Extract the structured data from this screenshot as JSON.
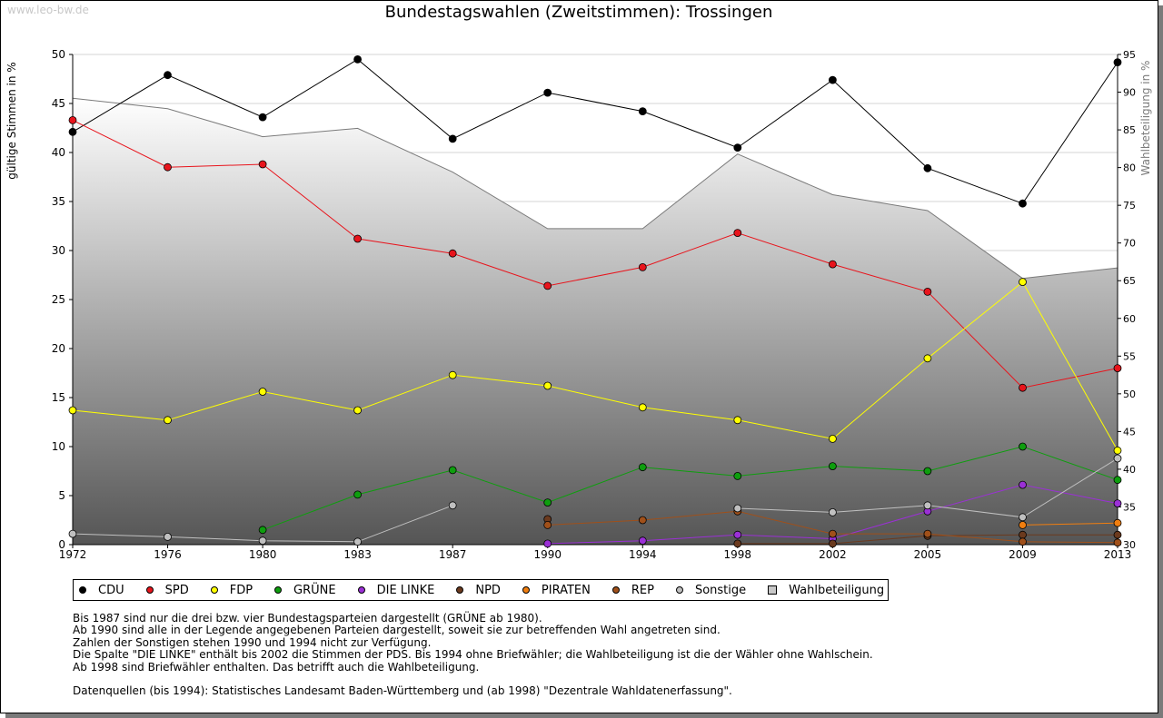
{
  "watermark": "www.leo-bw.de",
  "chart_data": {
    "type": "line",
    "title": "Bundestagswahlen (Zweitstimmen): Trossingen",
    "ylabel": "gültige Stimmen in %",
    "y2label": "Wahlbeteiligung in %",
    "xlabel": "",
    "x": [
      "1972",
      "1976",
      "1980",
      "1983",
      "1987",
      "1990",
      "1994",
      "1998",
      "2002",
      "2005",
      "2009",
      "2013"
    ],
    "ylim": [
      0,
      50
    ],
    "yticks": [
      0,
      5,
      10,
      15,
      20,
      25,
      30,
      35,
      40,
      45,
      50
    ],
    "y2lim": [
      30,
      95
    ],
    "y2ticks": [
      30,
      35,
      40,
      45,
      50,
      55,
      60,
      65,
      70,
      75,
      80,
      85,
      90,
      95
    ],
    "grid": true,
    "series": [
      {
        "name": "CDU",
        "color": "#000000",
        "values": [
          42.1,
          47.9,
          43.6,
          49.5,
          41.4,
          46.1,
          44.2,
          40.5,
          47.4,
          38.4,
          34.8,
          49.2
        ]
      },
      {
        "name": "SPD",
        "color": "#e8141c",
        "values": [
          43.3,
          38.5,
          38.8,
          31.2,
          29.7,
          26.4,
          28.3,
          31.8,
          28.6,
          25.8,
          16.0,
          18.0
        ]
      },
      {
        "name": "FDP",
        "color": "#ffff00",
        "values": [
          13.7,
          12.7,
          15.6,
          13.7,
          17.3,
          16.2,
          14.0,
          12.7,
          10.8,
          19.0,
          26.8,
          9.6
        ]
      },
      {
        "name": "GRÜNE",
        "color": "#0e9e0e",
        "values": [
          null,
          null,
          1.5,
          5.1,
          7.6,
          4.3,
          7.9,
          7.0,
          8.0,
          7.5,
          10.0,
          6.6
        ]
      },
      {
        "name": "DIE LINKE",
        "color": "#9b30d6",
        "values": [
          null,
          null,
          null,
          null,
          null,
          0.1,
          0.4,
          1.0,
          0.6,
          3.4,
          6.1,
          4.2
        ]
      },
      {
        "name": "NPD",
        "color": "#6b3a1e",
        "values": [
          null,
          null,
          null,
          null,
          null,
          2.6,
          null,
          0.1,
          0.1,
          0.9,
          1.0,
          1.0
        ]
      },
      {
        "name": "PIRATEN",
        "color": "#f07e10",
        "values": [
          null,
          null,
          null,
          null,
          null,
          null,
          null,
          null,
          null,
          null,
          2.0,
          2.2
        ]
      },
      {
        "name": "REP",
        "color": "#a0501a",
        "values": [
          null,
          null,
          null,
          null,
          null,
          2.0,
          2.5,
          3.4,
          1.1,
          1.1,
          0.3,
          0.2
        ]
      },
      {
        "name": "Sonstige",
        "color": "#c0c0c0",
        "values": [
          1.1,
          0.8,
          0.4,
          0.3,
          4.0,
          null,
          null,
          3.7,
          3.3,
          4.0,
          2.8,
          8.8
        ]
      }
    ],
    "turnout": {
      "name": "Wahlbeteiligung",
      "axis": "right",
      "values": [
        89.2,
        87.8,
        84.1,
        85.2,
        79.4,
        71.9,
        71.9,
        81.8,
        76.4,
        74.3,
        65.3,
        66.7
      ]
    }
  },
  "legend": [
    {
      "label": "CDU",
      "color": "#000000"
    },
    {
      "label": "SPD",
      "color": "#e8141c"
    },
    {
      "label": "FDP",
      "color": "#ffff00"
    },
    {
      "label": "GRÜNE",
      "color": "#0e9e0e"
    },
    {
      "label": "DIE LINKE",
      "color": "#9b30d6"
    },
    {
      "label": "NPD",
      "color": "#6b3a1e"
    },
    {
      "label": "PIRATEN",
      "color": "#f07e10"
    },
    {
      "label": "REP",
      "color": "#a0501a"
    },
    {
      "label": "Sonstige",
      "color": "#c0c0c0"
    },
    {
      "label": "Wahlbeteiligung",
      "color": "#c8c8c8"
    }
  ],
  "notes": {
    "line1": "Bis 1987 sind nur die drei bzw. vier Bundestagsparteien dargestellt (GRÜNE ab 1980).",
    "line2": "Ab 1990 sind alle in der Legende angegebenen Parteien dargestellt, soweit sie zur betreffenden Wahl angetreten sind.",
    "line3": "Zahlen der Sonstigen stehen 1990 und 1994 nicht zur Verfügung.",
    "line4": "Die Spalte \"DIE LINKE\" enthält bis 2002 die Stimmen der PDS. Bis 1994 ohne Briefwähler; die Wahlbeteiligung ist die der Wähler ohne Wahlschein.",
    "line5": "Ab 1998 sind Briefwähler enthalten. Das betrifft auch die Wahlbeteiligung.",
    "sources": "Datenquellen (bis 1994): Statistisches Landesamt Baden-Württemberg und (ab 1998) \"Dezentrale Wahldatenerfassung\"."
  }
}
